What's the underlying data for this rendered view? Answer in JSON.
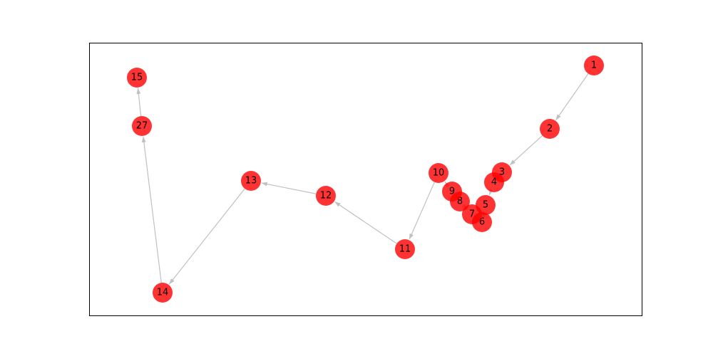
{
  "graph": {
    "node_color": "#ff0000",
    "edge_color": "#c0c0c0",
    "nodes": [
      {
        "id": "1",
        "label": "1"
      },
      {
        "id": "2",
        "label": "2"
      },
      {
        "id": "3",
        "label": "3"
      },
      {
        "id": "4",
        "label": "4"
      },
      {
        "id": "5",
        "label": "5"
      },
      {
        "id": "6",
        "label": "6"
      },
      {
        "id": "7",
        "label": "7"
      },
      {
        "id": "8",
        "label": "8"
      },
      {
        "id": "9",
        "label": "9"
      },
      {
        "id": "10",
        "label": "10"
      },
      {
        "id": "11",
        "label": "11"
      },
      {
        "id": "12",
        "label": "12"
      },
      {
        "id": "13",
        "label": "13"
      },
      {
        "id": "14",
        "label": "14"
      },
      {
        "id": "27",
        "label": "27"
      },
      {
        "id": "15",
        "label": "15"
      }
    ],
    "edges": [
      {
        "from": "1",
        "to": "2"
      },
      {
        "from": "2",
        "to": "3"
      },
      {
        "from": "3",
        "to": "4"
      },
      {
        "from": "4",
        "to": "5"
      },
      {
        "from": "5",
        "to": "6"
      },
      {
        "from": "6",
        "to": "7"
      },
      {
        "from": "7",
        "to": "8"
      },
      {
        "from": "8",
        "to": "9"
      },
      {
        "from": "9",
        "to": "10"
      },
      {
        "from": "10",
        "to": "11"
      },
      {
        "from": "11",
        "to": "12"
      },
      {
        "from": "12",
        "to": "13"
      },
      {
        "from": "13",
        "to": "14"
      },
      {
        "from": "14",
        "to": "27"
      },
      {
        "from": "27",
        "to": "15"
      }
    ]
  }
}
